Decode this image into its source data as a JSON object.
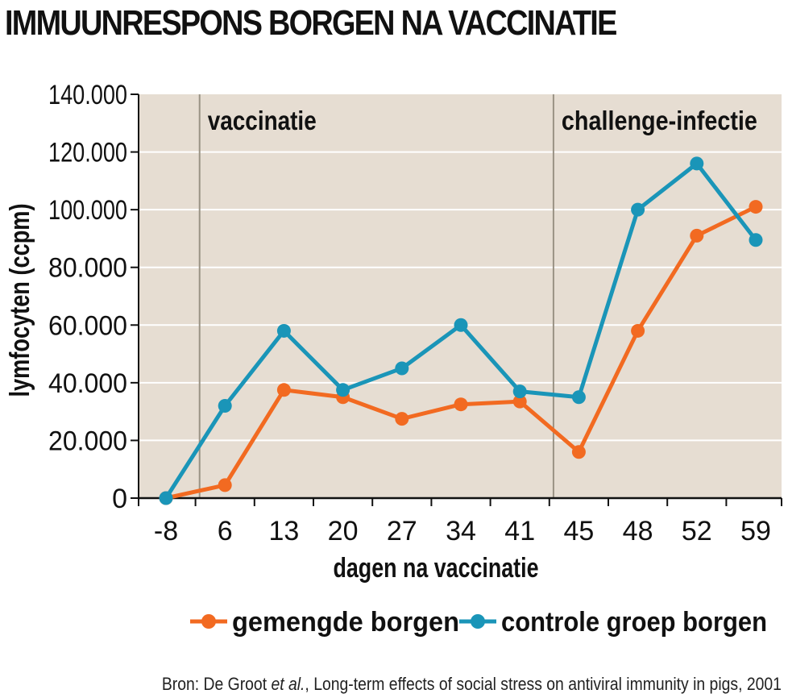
{
  "title": "IMMUUNRESPONS BORGEN NA VACCINATIE",
  "source": {
    "before": "Bron: De Groot ",
    "italic": "et al.",
    "after": ", Long-term effects of social stress on antiviral immunity in pigs, 2001"
  },
  "colors": {
    "plot_bg": "#e6ddd2",
    "grid": "#ffffff",
    "marker_line": "#9a9385",
    "gemengde": "#f26a21",
    "controle": "#1a95b8"
  },
  "chart_data": {
    "type": "line",
    "xlabel": "dagen na vaccinatie",
    "ylabel": "lymfocyten (ccpm)",
    "categories": [
      "-8",
      "6",
      "13",
      "20",
      "27",
      "34",
      "41",
      "45",
      "48",
      "52",
      "59"
    ],
    "ylim": [
      0,
      140000
    ],
    "yticks": [
      {
        "value": 0,
        "label": "0"
      },
      {
        "value": 20000,
        "label": "20.000"
      },
      {
        "value": 40000,
        "label": "40.000"
      },
      {
        "value": 60000,
        "label": "60.000"
      },
      {
        "value": 80000,
        "label": "80.000"
      },
      {
        "value": 100000,
        "label": "100.000"
      },
      {
        "value": 120000,
        "label": "120.000"
      },
      {
        "value": 140000,
        "label": "140.000"
      }
    ],
    "grid": true,
    "legend_position": "bottom",
    "annotations": [
      {
        "label": "vaccinatie",
        "after_category_index": 0
      },
      {
        "label": "challenge-infectie",
        "after_category_index": 6
      }
    ],
    "series": [
      {
        "name": "gemengde borgen",
        "color": "#f26a21",
        "values": [
          0,
          4500,
          37500,
          35000,
          27500,
          32500,
          33500,
          16000,
          58000,
          91000,
          101000
        ]
      },
      {
        "name": "controle groep borgen",
        "color": "#1a95b8",
        "values": [
          0,
          32000,
          58000,
          37500,
          45000,
          60000,
          37000,
          35000,
          100000,
          116000,
          89500
        ]
      }
    ]
  }
}
